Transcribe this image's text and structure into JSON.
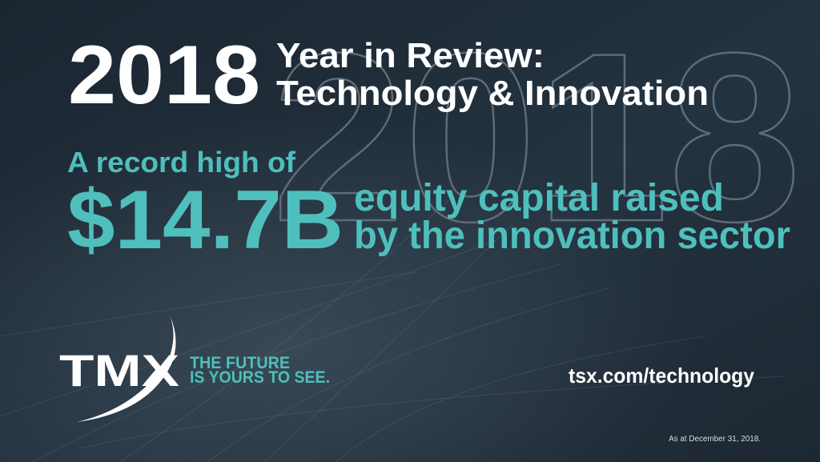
{
  "header": {
    "year": "2018",
    "title_line1": "Year in Review:",
    "title_line2": "Technology & Innovation",
    "watermark": "2018"
  },
  "highlight": {
    "intro": "A record high of",
    "amount": "$14.7B",
    "line1": "equity capital raised",
    "line2": "by the innovation sector"
  },
  "footer": {
    "logo": "TMX",
    "tagline_line1": "THE FUTURE",
    "tagline_line2": "IS YOURS TO SEE.",
    "url": "tsx.com/technology",
    "note": "As at December 31, 2018."
  }
}
